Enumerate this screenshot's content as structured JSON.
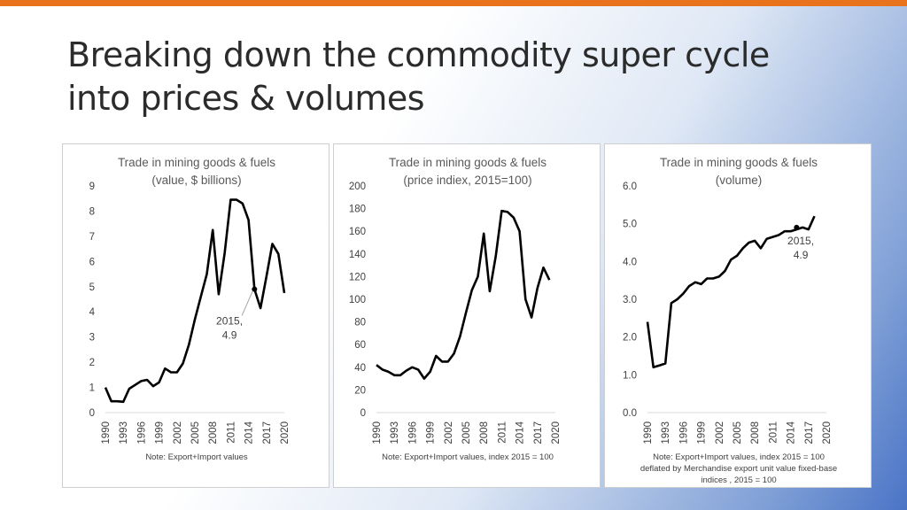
{
  "slide": {
    "title_line1": "Breaking down the commodity super cycle",
    "title_line2": "into prices & volumes"
  },
  "colors": {
    "accent_bar": "#e8731c",
    "line": "#000000",
    "tick_text": "#404040"
  },
  "chart_data": [
    {
      "type": "line",
      "title_line1": "Trade in mining goods & fuels",
      "title_line2": "(value, $ billions)",
      "note_lines": [
        "Note: Export+Import values"
      ],
      "ylim": [
        0,
        9
      ],
      "yticks": [
        "0",
        "1",
        "2",
        "3",
        "4",
        "5",
        "6",
        "7",
        "8",
        "9"
      ],
      "xlim": [
        1990,
        2020
      ],
      "xticks": [
        "1990",
        "1993",
        "1996",
        "1999",
        "2002",
        "2005",
        "2008",
        "2011",
        "2014",
        "2017",
        "2020"
      ],
      "annotation": {
        "x": 2015,
        "y": 4.9,
        "label_line1": "2015,",
        "label_line2": "4.9",
        "label_pos": [
          2010.8,
          3.5
        ]
      },
      "series": [
        {
          "name": "value",
          "x": [
            1990,
            1991,
            1992,
            1993,
            1994,
            1995,
            1996,
            1997,
            1998,
            1999,
            2000,
            2001,
            2002,
            2003,
            2004,
            2005,
            2006,
            2007,
            2008,
            2009,
            2010,
            2011,
            2012,
            2013,
            2014,
            2015,
            2016,
            2017,
            2018,
            2019,
            2020
          ],
          "values": [
            1.0,
            0.45,
            0.45,
            0.43,
            0.95,
            1.1,
            1.25,
            1.3,
            1.05,
            1.2,
            1.75,
            1.6,
            1.6,
            1.95,
            2.7,
            3.7,
            4.6,
            5.5,
            7.25,
            4.7,
            6.35,
            8.45,
            8.45,
            8.3,
            7.65,
            4.9,
            4.15,
            5.4,
            6.7,
            6.3,
            4.75
          ]
        }
      ]
    },
    {
      "type": "line",
      "title_line1": "Trade in mining goods & fuels",
      "title_line2": "(price indiex, 2015=100)",
      "note_lines": [
        "Note: Export+Import values, index 2015 = 100"
      ],
      "ylim": [
        0,
        200
      ],
      "yticks": [
        "0",
        "20",
        "40",
        "60",
        "80",
        "100",
        "120",
        "140",
        "160",
        "180",
        "200"
      ],
      "xlim": [
        1990,
        2020
      ],
      "xticks": [
        "1990",
        "1993",
        "1996",
        "1999",
        "2002",
        "2005",
        "2008",
        "2011",
        "2014",
        "2017",
        "2020"
      ],
      "series": [
        {
          "name": "price index",
          "x": [
            1990,
            1991,
            1992,
            1993,
            1994,
            1995,
            1996,
            1997,
            1998,
            1999,
            2000,
            2001,
            2002,
            2003,
            2004,
            2005,
            2006,
            2007,
            2008,
            2009,
            2010,
            2011,
            2012,
            2013,
            2014,
            2015,
            2016,
            2017,
            2018,
            2019
          ],
          "values": [
            42,
            38,
            36,
            33,
            33,
            37,
            40,
            38,
            30,
            36,
            50,
            45,
            45,
            52,
            67,
            88,
            108,
            120,
            158,
            107,
            138,
            178,
            177,
            172,
            160,
            100,
            84,
            110,
            128,
            117
          ]
        }
      ]
    },
    {
      "type": "line",
      "title_line1": "Trade in mining goods & fuels",
      "title_line2": "(volume)",
      "note_lines": [
        "Note: Export+Import values, index 2015 = 100",
        "deflated by Merchandise export unit value fixed-base",
        "indices , 2015 = 100"
      ],
      "ylim": [
        0,
        6
      ],
      "yticks": [
        "0.0",
        "1.0",
        "2.0",
        "3.0",
        "4.0",
        "5.0",
        "6.0"
      ],
      "xlim": [
        1990,
        2020
      ],
      "xticks": [
        "1990",
        "1993",
        "1996",
        "1999",
        "2002",
        "2005",
        "2008",
        "2011",
        "2014",
        "2017",
        "2020"
      ],
      "annotation": {
        "x": 2015,
        "y": 4.9,
        "label_line1": "2015,",
        "label_line2": "4.9",
        "label_pos": [
          2015.7,
          4.45
        ]
      },
      "series": [
        {
          "name": "volume",
          "x": [
            1990,
            1991,
            1992,
            1993,
            1994,
            1995,
            1996,
            1997,
            1998,
            1999,
            2000,
            2001,
            2002,
            2003,
            2004,
            2005,
            2006,
            2007,
            2008,
            2009,
            2010,
            2011,
            2012,
            2013,
            2014,
            2015,
            2016,
            2017,
            2018
          ],
          "values": [
            2.4,
            1.2,
            1.25,
            1.3,
            2.9,
            3.0,
            3.15,
            3.35,
            3.45,
            3.4,
            3.55,
            3.55,
            3.6,
            3.75,
            4.05,
            4.15,
            4.35,
            4.5,
            4.55,
            4.35,
            4.6,
            4.65,
            4.7,
            4.8,
            4.8,
            4.85,
            4.9,
            4.85,
            5.2
          ]
        }
      ]
    }
  ]
}
